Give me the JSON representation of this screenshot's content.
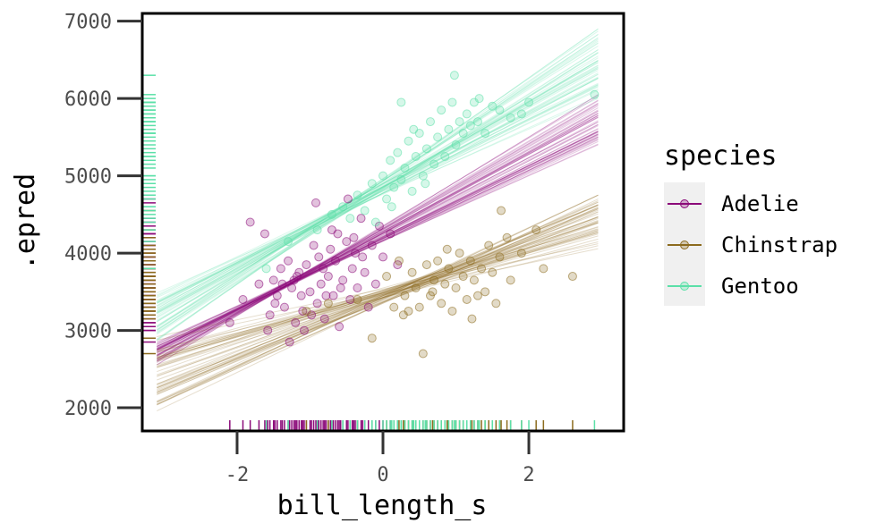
{
  "chart_data": {
    "type": "scatter",
    "title": "",
    "xlabel": "bill_length_s",
    "ylabel": ".epred",
    "xlim": [
      -3.3,
      3.3
    ],
    "ylim": [
      1700,
      7100
    ],
    "x_ticks": [
      -2,
      0,
      2
    ],
    "y_ticks": [
      2000,
      3000,
      4000,
      5000,
      6000,
      7000
    ],
    "x_tick_labels": [
      "-2",
      "0",
      "2"
    ],
    "y_tick_labels": [
      "2000",
      "3000",
      "4000",
      "5000",
      "6000",
      "7000"
    ],
    "grid": false,
    "legend": {
      "title": "species",
      "position": "right"
    },
    "series": [
      {
        "name": "Adelie",
        "color": "#8B0A79",
        "fit_lines": {
          "x_range": [
            -3.1,
            2.95
          ],
          "count": 50,
          "y_at_x_min": [
            2550,
            2850
          ],
          "y_at_x_max": [
            5400,
            6050
          ]
        },
        "points": [
          [
            -1.82,
            4400
          ],
          [
            -1.62,
            4250
          ],
          [
            -1.55,
            3200
          ],
          [
            -1.5,
            3650
          ],
          [
            -1.45,
            3450
          ],
          [
            -1.4,
            3800
          ],
          [
            -1.35,
            3300
          ],
          [
            -1.3,
            3900
          ],
          [
            -1.25,
            3550
          ],
          [
            -1.2,
            3100
          ],
          [
            -1.15,
            3750
          ],
          [
            -1.1,
            3250
          ],
          [
            -1.05,
            3850
          ],
          [
            -1.0,
            3500
          ],
          [
            -0.95,
            4100
          ],
          [
            -0.9,
            3350
          ],
          [
            -0.88,
            3950
          ],
          [
            -0.85,
            3600
          ],
          [
            -0.8,
            3150
          ],
          [
            -0.75,
            3700
          ],
          [
            -0.7,
            4300
          ],
          [
            -0.68,
            3450
          ],
          [
            -0.65,
            3900
          ],
          [
            -0.6,
            3050
          ],
          [
            -0.55,
            3650
          ],
          [
            -0.5,
            4150
          ],
          [
            -0.45,
            3400
          ],
          [
            -0.42,
            3800
          ],
          [
            -0.38,
            4000
          ],
          [
            -0.35,
            3550
          ],
          [
            -0.3,
            4450
          ],
          [
            -0.25,
            3750
          ],
          [
            -0.2,
            3300
          ],
          [
            -0.15,
            4100
          ],
          [
            -0.1,
            3600
          ],
          [
            -0.05,
            4350
          ],
          [
            0.0,
            3950
          ],
          [
            0.1,
            4250
          ],
          [
            0.2,
            3850
          ],
          [
            -1.7,
            3600
          ],
          [
            -1.58,
            3000
          ],
          [
            -1.48,
            3350
          ],
          [
            -1.28,
            2850
          ],
          [
            -1.18,
            3700
          ],
          [
            -1.08,
            3000
          ],
          [
            -0.98,
            3200
          ],
          [
            -0.78,
            3450
          ],
          [
            -0.58,
            3550
          ],
          [
            -0.48,
            4700
          ],
          [
            -0.92,
            4650
          ],
          [
            -1.38,
            3600
          ],
          [
            -2.1,
            3100
          ],
          [
            -1.92,
            3400
          ],
          [
            -0.28,
            3950
          ],
          [
            -0.62,
            4250
          ],
          [
            -0.82,
            3800
          ],
          [
            -1.12,
            3450
          ],
          [
            -1.22,
            3650
          ],
          [
            -0.72,
            4050
          ],
          [
            -0.4,
            4200
          ]
        ]
      },
      {
        "name": "Chinstrap",
        "color": "#8C6B1E",
        "fit_lines": {
          "x_range": [
            -3.1,
            2.95
          ],
          "count": 50,
          "y_at_x_min": [
            1950,
            2950
          ],
          "y_at_x_max": [
            4050,
            4750
          ]
        },
        "points": [
          [
            -1.05,
            3250
          ],
          [
            -0.75,
            3350
          ],
          [
            -0.35,
            3400
          ],
          [
            -0.15,
            2900
          ],
          [
            0.05,
            3700
          ],
          [
            0.15,
            3300
          ],
          [
            0.22,
            3900
          ],
          [
            0.3,
            3450
          ],
          [
            0.35,
            3250
          ],
          [
            0.4,
            3750
          ],
          [
            0.45,
            3550
          ],
          [
            0.5,
            3300
          ],
          [
            0.55,
            2700
          ],
          [
            0.6,
            3850
          ],
          [
            0.65,
            3450
          ],
          [
            0.7,
            3650
          ],
          [
            0.75,
            3900
          ],
          [
            0.8,
            3350
          ],
          [
            0.85,
            3600
          ],
          [
            0.9,
            3800
          ],
          [
            0.95,
            3250
          ],
          [
            1.0,
            3550
          ],
          [
            1.05,
            4000
          ],
          [
            1.1,
            3700
          ],
          [
            1.15,
            3400
          ],
          [
            1.2,
            3900
          ],
          [
            1.25,
            3650
          ],
          [
            1.3,
            3450
          ],
          [
            1.35,
            3800
          ],
          [
            1.4,
            3500
          ],
          [
            1.45,
            4100
          ],
          [
            1.5,
            3750
          ],
          [
            1.55,
            3350
          ],
          [
            1.6,
            3950
          ],
          [
            1.7,
            4200
          ],
          [
            1.75,
            3650
          ],
          [
            1.9,
            4000
          ],
          [
            2.1,
            4300
          ],
          [
            2.2,
            3800
          ],
          [
            2.6,
            3700
          ],
          [
            0.28,
            3200
          ],
          [
            0.68,
            3500
          ],
          [
            1.22,
            3150
          ],
          [
            1.62,
            4550
          ],
          [
            0.88,
            4050
          ]
        ]
      },
      {
        "name": "Gentoo",
        "color": "#5BE0A8",
        "fit_lines": {
          "x_range": [
            -3.1,
            2.95
          ],
          "count": 50,
          "y_at_x_min": [
            2850,
            3500
          ],
          "y_at_x_max": [
            6000,
            6900
          ]
        },
        "points": [
          [
            -1.6,
            3800
          ],
          [
            -1.3,
            4150
          ],
          [
            -0.9,
            4300
          ],
          [
            -0.7,
            4500
          ],
          [
            -0.55,
            4600
          ],
          [
            -0.45,
            4450
          ],
          [
            -0.35,
            4750
          ],
          [
            -0.25,
            4550
          ],
          [
            -0.15,
            4900
          ],
          [
            -0.1,
            4400
          ],
          [
            0.0,
            5000
          ],
          [
            0.05,
            4700
          ],
          [
            0.1,
            5200
          ],
          [
            0.15,
            4850
          ],
          [
            0.2,
            5300
          ],
          [
            0.25,
            4950
          ],
          [
            0.3,
            5100
          ],
          [
            0.35,
            5450
          ],
          [
            0.4,
            4800
          ],
          [
            0.45,
            5250
          ],
          [
            0.5,
            5550
          ],
          [
            0.55,
            5000
          ],
          [
            0.6,
            5350
          ],
          [
            0.65,
            5700
          ],
          [
            0.7,
            5150
          ],
          [
            0.75,
            5500
          ],
          [
            0.8,
            5850
          ],
          [
            0.85,
            5250
          ],
          [
            0.9,
            5600
          ],
          [
            0.95,
            5950
          ],
          [
            1.0,
            5400
          ],
          [
            1.05,
            5700
          ],
          [
            1.1,
            5550
          ],
          [
            1.15,
            5800
          ],
          [
            1.2,
            5650
          ],
          [
            1.25,
            5950
          ],
          [
            1.3,
            5700
          ],
          [
            1.4,
            5550
          ],
          [
            1.5,
            5900
          ],
          [
            1.6,
            5850
          ],
          [
            1.75,
            5750
          ],
          [
            1.9,
            5800
          ],
          [
            2.0,
            5950
          ],
          [
            2.9,
            6050
          ],
          [
            0.98,
            6300
          ],
          [
            0.25,
            5950
          ],
          [
            1.32,
            6000
          ],
          [
            0.12,
            4600
          ],
          [
            0.42,
            5600
          ],
          [
            0.58,
            4900
          ]
        ]
      }
    ]
  }
}
